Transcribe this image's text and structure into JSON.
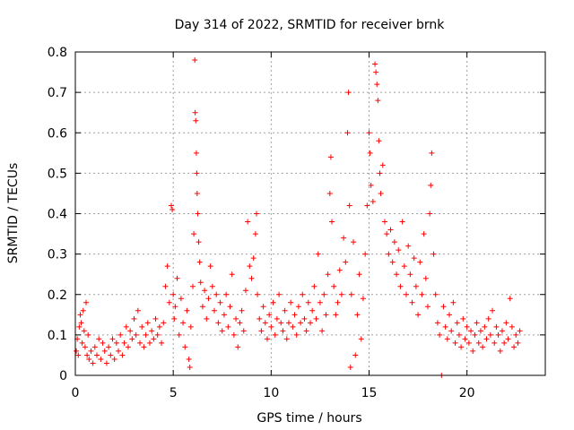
{
  "chart_data": {
    "type": "scatter",
    "title": "Day 314 of 2022, SRMTID for receiver brnk",
    "xlabel": "GPS time / hours",
    "ylabel": "SRMTID / TECUs",
    "xlim": [
      0,
      24
    ],
    "ylim": [
      0,
      0.8
    ],
    "x_ticks": [
      0,
      5,
      10,
      15,
      20
    ],
    "x_tick_labels": [
      "0",
      "5",
      "10",
      "15",
      "20"
    ],
    "y_ticks": [
      0,
      0.1,
      0.2,
      0.3,
      0.4,
      0.5,
      0.6,
      0.7,
      0.8
    ],
    "y_tick_labels": [
      "0",
      "0.1",
      "0.2",
      "0.3",
      "0.4",
      "0.5",
      "0.6",
      "0.7",
      "0.8"
    ],
    "grid": true,
    "marker": "+",
    "colors": {
      "points": "#ff0000",
      "grid": "#a0a0a0",
      "axes": "#000000"
    },
    "series": [
      {
        "name": "SRMTID",
        "points": [
          [
            0.05,
            0.06
          ],
          [
            0.1,
            0.09
          ],
          [
            0.15,
            0.05
          ],
          [
            0.2,
            0.12
          ],
          [
            0.25,
            0.15
          ],
          [
            0.3,
            0.13
          ],
          [
            0.35,
            0.08
          ],
          [
            0.4,
            0.16
          ],
          [
            0.45,
            0.11
          ],
          [
            0.5,
            0.07
          ],
          [
            0.55,
            0.18
          ],
          [
            0.6,
            0.05
          ],
          [
            0.65,
            0.1
          ],
          [
            0.7,
            0.04
          ],
          [
            0.8,
            0.06
          ],
          [
            0.9,
            0.03
          ],
          [
            1.0,
            0.07
          ],
          [
            1.1,
            0.05
          ],
          [
            1.2,
            0.09
          ],
          [
            1.3,
            0.04
          ],
          [
            1.4,
            0.08
          ],
          [
            1.5,
            0.06
          ],
          [
            1.6,
            0.03
          ],
          [
            1.7,
            0.07
          ],
          [
            1.8,
            0.05
          ],
          [
            1.9,
            0.09
          ],
          [
            2.0,
            0.04
          ],
          [
            2.1,
            0.08
          ],
          [
            2.2,
            0.06
          ],
          [
            2.3,
            0.1
          ],
          [
            2.4,
            0.05
          ],
          [
            2.5,
            0.08
          ],
          [
            2.6,
            0.12
          ],
          [
            2.7,
            0.07
          ],
          [
            2.8,
            0.11
          ],
          [
            2.9,
            0.09
          ],
          [
            3.0,
            0.14
          ],
          [
            3.1,
            0.1
          ],
          [
            3.2,
            0.16
          ],
          [
            3.3,
            0.08
          ],
          [
            3.4,
            0.12
          ],
          [
            3.5,
            0.07
          ],
          [
            3.6,
            0.1
          ],
          [
            3.7,
            0.13
          ],
          [
            3.8,
            0.08
          ],
          [
            3.9,
            0.11
          ],
          [
            4.0,
            0.09
          ],
          [
            4.1,
            0.14
          ],
          [
            4.2,
            0.1
          ],
          [
            4.3,
            0.12
          ],
          [
            4.4,
            0.08
          ],
          [
            4.5,
            0.13
          ],
          [
            4.6,
            0.22
          ],
          [
            4.7,
            0.27
          ],
          [
            4.8,
            0.18
          ],
          [
            4.9,
            0.42
          ],
          [
            4.95,
            0.41
          ],
          [
            5.0,
            0.2
          ],
          [
            5.05,
            0.14
          ],
          [
            5.1,
            0.17
          ],
          [
            5.2,
            0.24
          ],
          [
            5.3,
            0.1
          ],
          [
            5.4,
            0.19
          ],
          [
            5.5,
            0.13
          ],
          [
            5.6,
            0.07
          ],
          [
            5.7,
            0.16
          ],
          [
            5.8,
            0.04
          ],
          [
            5.85,
            0.02
          ],
          [
            5.9,
            0.12
          ],
          [
            6.0,
            0.22
          ],
          [
            6.05,
            0.35
          ],
          [
            6.1,
            0.78
          ],
          [
            6.12,
            0.65
          ],
          [
            6.15,
            0.63
          ],
          [
            6.18,
            0.55
          ],
          [
            6.2,
            0.5
          ],
          [
            6.22,
            0.45
          ],
          [
            6.25,
            0.4
          ],
          [
            6.3,
            0.33
          ],
          [
            6.35,
            0.28
          ],
          [
            6.4,
            0.23
          ],
          [
            6.5,
            0.17
          ],
          [
            6.6,
            0.21
          ],
          [
            6.7,
            0.14
          ],
          [
            6.8,
            0.19
          ],
          [
            6.9,
            0.27
          ],
          [
            7.0,
            0.22
          ],
          [
            7.1,
            0.16
          ],
          [
            7.2,
            0.2
          ],
          [
            7.3,
            0.13
          ],
          [
            7.4,
            0.18
          ],
          [
            7.5,
            0.11
          ],
          [
            7.6,
            0.15
          ],
          [
            7.7,
            0.2
          ],
          [
            7.8,
            0.12
          ],
          [
            7.9,
            0.17
          ],
          [
            8.0,
            0.25
          ],
          [
            8.1,
            0.1
          ],
          [
            8.2,
            0.14
          ],
          [
            8.3,
            0.07
          ],
          [
            8.4,
            0.13
          ],
          [
            8.5,
            0.16
          ],
          [
            8.6,
            0.11
          ],
          [
            8.7,
            0.21
          ],
          [
            8.8,
            0.38
          ],
          [
            8.9,
            0.27
          ],
          [
            9.0,
            0.24
          ],
          [
            9.1,
            0.29
          ],
          [
            9.2,
            0.35
          ],
          [
            9.25,
            0.4
          ],
          [
            9.3,
            0.2
          ],
          [
            9.4,
            0.14
          ],
          [
            9.5,
            0.11
          ],
          [
            9.6,
            0.17
          ],
          [
            9.7,
            0.13
          ],
          [
            9.8,
            0.09
          ],
          [
            9.9,
            0.15
          ],
          [
            10.0,
            0.12
          ],
          [
            10.1,
            0.18
          ],
          [
            10.2,
            0.1
          ],
          [
            10.3,
            0.14
          ],
          [
            10.4,
            0.2
          ],
          [
            10.5,
            0.13
          ],
          [
            10.6,
            0.11
          ],
          [
            10.7,
            0.16
          ],
          [
            10.8,
            0.09
          ],
          [
            10.9,
            0.13
          ],
          [
            11.0,
            0.18
          ],
          [
            11.1,
            0.12
          ],
          [
            11.2,
            0.15
          ],
          [
            11.3,
            0.1
          ],
          [
            11.4,
            0.17
          ],
          [
            11.5,
            0.13
          ],
          [
            11.6,
            0.2
          ],
          [
            11.7,
            0.14
          ],
          [
            11.8,
            0.11
          ],
          [
            11.9,
            0.18
          ],
          [
            12.0,
            0.13
          ],
          [
            12.1,
            0.16
          ],
          [
            12.2,
            0.22
          ],
          [
            12.3,
            0.14
          ],
          [
            12.4,
            0.3
          ],
          [
            12.5,
            0.18
          ],
          [
            12.6,
            0.11
          ],
          [
            12.7,
            0.2
          ],
          [
            12.8,
            0.15
          ],
          [
            12.9,
            0.25
          ],
          [
            13.0,
            0.45
          ],
          [
            13.05,
            0.54
          ],
          [
            13.1,
            0.38
          ],
          [
            13.2,
            0.22
          ],
          [
            13.3,
            0.15
          ],
          [
            13.4,
            0.18
          ],
          [
            13.5,
            0.26
          ],
          [
            13.6,
            0.2
          ],
          [
            13.7,
            0.34
          ],
          [
            13.8,
            0.28
          ],
          [
            13.9,
            0.6
          ],
          [
            13.95,
            0.7
          ],
          [
            14.0,
            0.42
          ],
          [
            14.05,
            0.02
          ],
          [
            14.1,
            0.2
          ],
          [
            14.2,
            0.33
          ],
          [
            14.3,
            0.05
          ],
          [
            14.4,
            0.15
          ],
          [
            14.5,
            0.25
          ],
          [
            14.6,
            0.09
          ],
          [
            14.7,
            0.19
          ],
          [
            14.8,
            0.3
          ],
          [
            14.9,
            0.42
          ],
          [
            15.0,
            0.6
          ],
          [
            15.05,
            0.55
          ],
          [
            15.1,
            0.47
          ],
          [
            15.2,
            0.43
          ],
          [
            15.3,
            0.77
          ],
          [
            15.35,
            0.75
          ],
          [
            15.4,
            0.72
          ],
          [
            15.45,
            0.68
          ],
          [
            15.5,
            0.58
          ],
          [
            15.55,
            0.5
          ],
          [
            15.6,
            0.45
          ],
          [
            15.7,
            0.52
          ],
          [
            15.8,
            0.38
          ],
          [
            15.9,
            0.35
          ],
          [
            16.0,
            0.3
          ],
          [
            16.1,
            0.36
          ],
          [
            16.2,
            0.28
          ],
          [
            16.3,
            0.33
          ],
          [
            16.4,
            0.25
          ],
          [
            16.5,
            0.31
          ],
          [
            16.6,
            0.22
          ],
          [
            16.7,
            0.38
          ],
          [
            16.8,
            0.27
          ],
          [
            16.9,
            0.2
          ],
          [
            17.0,
            0.32
          ],
          [
            17.1,
            0.25
          ],
          [
            17.2,
            0.18
          ],
          [
            17.3,
            0.29
          ],
          [
            17.4,
            0.22
          ],
          [
            17.5,
            0.15
          ],
          [
            17.6,
            0.28
          ],
          [
            17.7,
            0.2
          ],
          [
            17.8,
            0.35
          ],
          [
            17.9,
            0.24
          ],
          [
            18.0,
            0.17
          ],
          [
            18.1,
            0.4
          ],
          [
            18.15,
            0.47
          ],
          [
            18.2,
            0.55
          ],
          [
            18.3,
            0.3
          ],
          [
            18.4,
            0.2
          ],
          [
            18.5,
            0.13
          ],
          [
            18.6,
            0.1
          ],
          [
            18.7,
            0.0
          ],
          [
            18.8,
            0.17
          ],
          [
            18.9,
            0.12
          ],
          [
            19.0,
            0.09
          ],
          [
            19.1,
            0.15
          ],
          [
            19.2,
            0.11
          ],
          [
            19.3,
            0.18
          ],
          [
            19.4,
            0.08
          ],
          [
            19.5,
            0.13
          ],
          [
            19.6,
            0.1
          ],
          [
            19.7,
            0.07
          ],
          [
            19.8,
            0.14
          ],
          [
            19.9,
            0.09
          ],
          [
            20.0,
            0.12
          ],
          [
            20.1,
            0.08
          ],
          [
            20.2,
            0.11
          ],
          [
            20.3,
            0.06
          ],
          [
            20.4,
            0.1
          ],
          [
            20.5,
            0.13
          ],
          [
            20.6,
            0.08
          ],
          [
            20.7,
            0.11
          ],
          [
            20.8,
            0.07
          ],
          [
            20.9,
            0.12
          ],
          [
            21.0,
            0.09
          ],
          [
            21.1,
            0.14
          ],
          [
            21.2,
            0.1
          ],
          [
            21.3,
            0.16
          ],
          [
            21.4,
            0.08
          ],
          [
            21.5,
            0.12
          ],
          [
            21.6,
            0.1
          ],
          [
            21.7,
            0.06
          ],
          [
            21.8,
            0.11
          ],
          [
            21.9,
            0.08
          ],
          [
            22.0,
            0.13
          ],
          [
            22.1,
            0.09
          ],
          [
            22.2,
            0.19
          ],
          [
            22.3,
            0.12
          ],
          [
            22.4,
            0.07
          ],
          [
            22.5,
            0.1
          ],
          [
            22.6,
            0.08
          ],
          [
            22.7,
            0.11
          ]
        ]
      }
    ]
  }
}
